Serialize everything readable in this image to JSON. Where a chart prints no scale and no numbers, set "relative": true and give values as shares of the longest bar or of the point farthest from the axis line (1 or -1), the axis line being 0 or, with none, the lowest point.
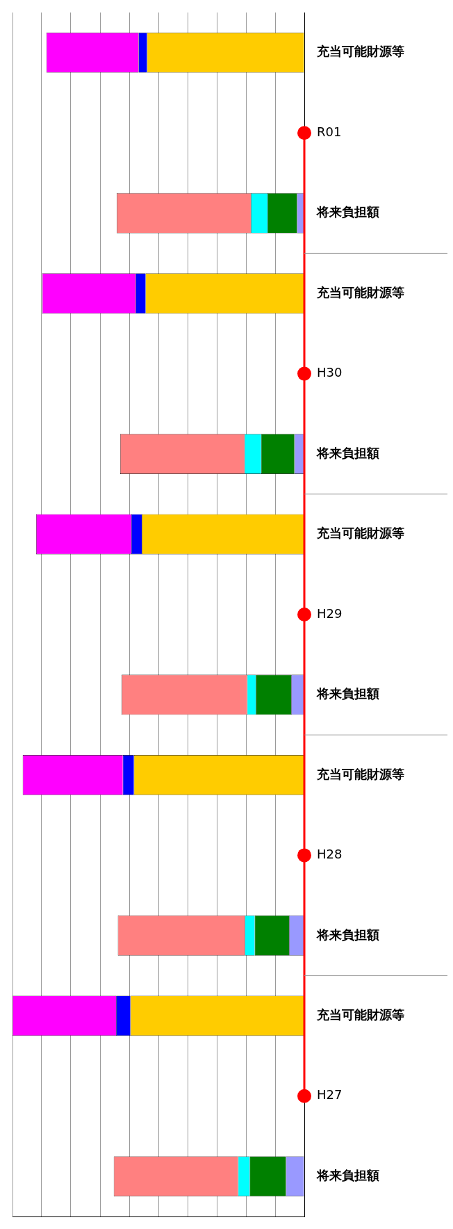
{
  "chart_data": {
    "type": "bar",
    "orientation": "horizontal",
    "stacked": true,
    "relative": true,
    "grid": "x",
    "legend": false,
    "categories": [
      "充当可能財源等",
      "R01",
      "将来負担額",
      "充当可能財源等",
      "H30",
      "将来負担額",
      "充当可能財源等",
      "H29",
      "将来負担額",
      "充当可能財源等",
      "H28",
      "将来負担額",
      "充当可能財源等",
      "H27",
      "将来負担額"
    ],
    "series": [
      {
        "color": "#9999ff",
        "values": [
          null,
          null,
          0.025,
          null,
          null,
          0.034,
          null,
          null,
          0.045,
          null,
          null,
          0.052,
          null,
          null,
          0.063
        ]
      },
      {
        "color": "#008000",
        "values": [
          null,
          null,
          0.101,
          null,
          null,
          0.114,
          null,
          null,
          0.121,
          null,
          null,
          0.118,
          null,
          null,
          0.124
        ]
      },
      {
        "color": "#00ffff",
        "values": [
          null,
          null,
          0.057,
          null,
          null,
          0.057,
          null,
          null,
          0.03,
          null,
          null,
          0.034,
          null,
          null,
          0.04
        ]
      },
      {
        "color": "#ff8080",
        "values": [
          null,
          null,
          0.46,
          null,
          null,
          0.426,
          null,
          null,
          0.43,
          null,
          null,
          0.435,
          null,
          null,
          0.426
        ]
      },
      {
        "color": "#ffcc00",
        "values": [
          0.539,
          null,
          null,
          0.544,
          null,
          null,
          0.557,
          null,
          null,
          0.584,
          null,
          null,
          0.596,
          null,
          null
        ]
      },
      {
        "color": "#0000ff",
        "values": [
          0.029,
          null,
          null,
          0.034,
          null,
          null,
          0.036,
          null,
          null,
          0.038,
          null,
          null,
          0.049,
          null,
          null
        ]
      },
      {
        "color": "#ff00ff",
        "values": [
          0.316,
          null,
          null,
          0.32,
          null,
          null,
          0.326,
          null,
          null,
          0.343,
          null,
          null,
          0.355,
          null,
          null
        ]
      },
      {
        "type": "line",
        "values": [
          null,
          0,
          0,
          0,
          0,
          0,
          0,
          0,
          0,
          0,
          0,
          0,
          0,
          0,
          null
        ],
        "color": "#ff0000",
        "marker": "none"
      },
      {
        "type": "scatter",
        "values": [
          null,
          0,
          null,
          null,
          0,
          null,
          null,
          0,
          null,
          null,
          0,
          null,
          null,
          0,
          null
        ],
        "color": "#ff0000",
        "marker": "circle"
      }
    ]
  }
}
